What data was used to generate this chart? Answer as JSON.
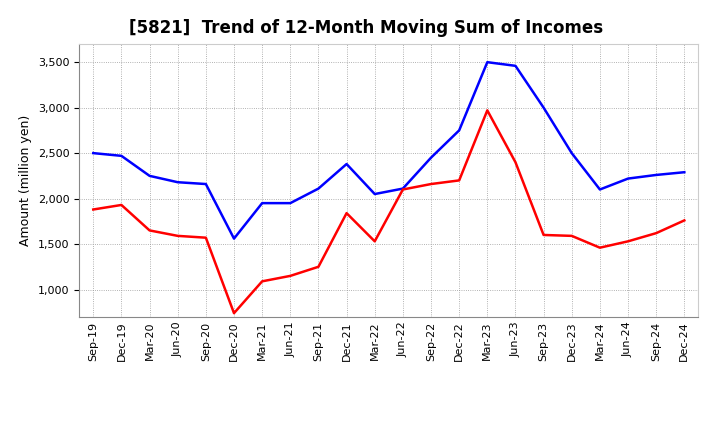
{
  "title": "[5821]  Trend of 12-Month Moving Sum of Incomes",
  "ylabel": "Amount (million yen)",
  "x_labels": [
    "Sep-19",
    "Dec-19",
    "Mar-20",
    "Jun-20",
    "Sep-20",
    "Dec-20",
    "Mar-21",
    "Jun-21",
    "Sep-21",
    "Dec-21",
    "Mar-22",
    "Jun-22",
    "Sep-22",
    "Dec-22",
    "Mar-23",
    "Jun-23",
    "Sep-23",
    "Dec-23",
    "Mar-24",
    "Jun-24",
    "Sep-24",
    "Dec-24"
  ],
  "ordinary_income": [
    2500,
    2470,
    2250,
    2180,
    2160,
    1560,
    1950,
    1950,
    2110,
    2380,
    2050,
    2110,
    2450,
    2750,
    3500,
    3460,
    3000,
    2500,
    2100,
    2220,
    2260,
    2290
  ],
  "net_income": [
    1880,
    1930,
    1650,
    1590,
    1570,
    740,
    1090,
    1150,
    1250,
    1840,
    1530,
    2100,
    2160,
    2200,
    2970,
    2400,
    1600,
    1590,
    1460,
    1530,
    1620,
    1760
  ],
  "ordinary_color": "#0000ff",
  "net_color": "#ff0000",
  "ylim_min": 700,
  "ylim_max": 3700,
  "yticks": [
    1000,
    1500,
    2000,
    2500,
    3000,
    3500
  ],
  "background_color": "#ffffff",
  "grid_color": "#999999",
  "title_fontsize": 12,
  "axis_label_fontsize": 9,
  "tick_fontsize": 8,
  "line_width": 1.8
}
